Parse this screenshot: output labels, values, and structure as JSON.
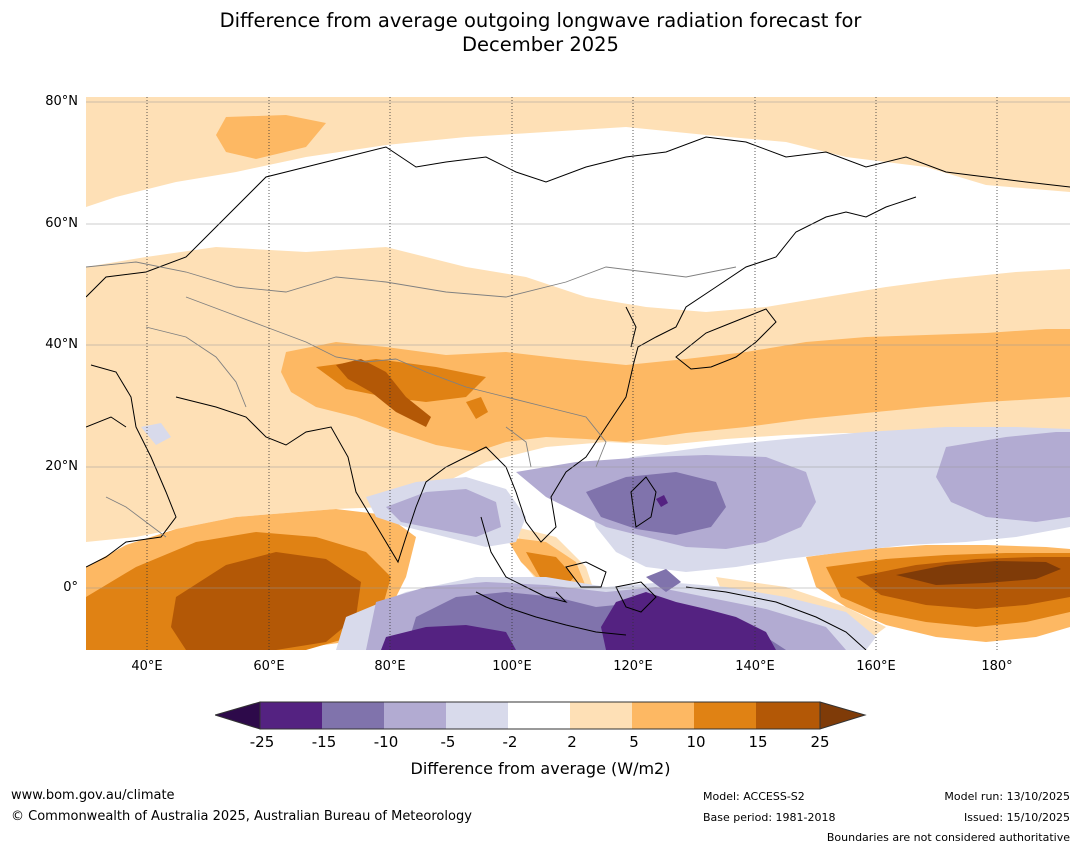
{
  "title_line1": "Difference from average outgoing longwave radiation forecast for",
  "title_line2": "December 2025",
  "lat_labels": [
    "80°N",
    "60°N",
    "40°N",
    "20°N",
    "0°"
  ],
  "lon_labels": [
    "40°E",
    "60°E",
    "80°E",
    "100°E",
    "120°E",
    "140°E",
    "160°E",
    "180°"
  ],
  "colorbar": {
    "ticks": [
      "-25",
      "-15",
      "-10",
      "-5",
      "-2",
      "2",
      "5",
      "10",
      "15",
      "25"
    ],
    "label": "Difference from average (W/m2)",
    "colors": {
      "lt_m25": "#2d0a4a",
      "m25_m15": "#542281",
      "m15_m10": "#8073ac",
      "m10_m5": "#b2abd2",
      "m5_m2": "#d8daeb",
      "m2_2": "#ffffff",
      "p2_5": "#fee0b6",
      "p5_10": "#fdb863",
      "p10_15": "#e08214",
      "p15_25": "#b35806",
      "gt_25": "#7f3b08"
    }
  },
  "footer": {
    "website": "www.bom.gov.au/climate",
    "copyright": "© Commonwealth of Australia 2025, Australian Bureau of Meteorology",
    "model": "Model: ACCESS-S2",
    "base_period": "Base period: 1981-2018",
    "model_run": "Model run: 13/10/2025",
    "issued": "Issued: 15/10/2025",
    "disclaimer": "Boundaries are not considered authoritative"
  }
}
